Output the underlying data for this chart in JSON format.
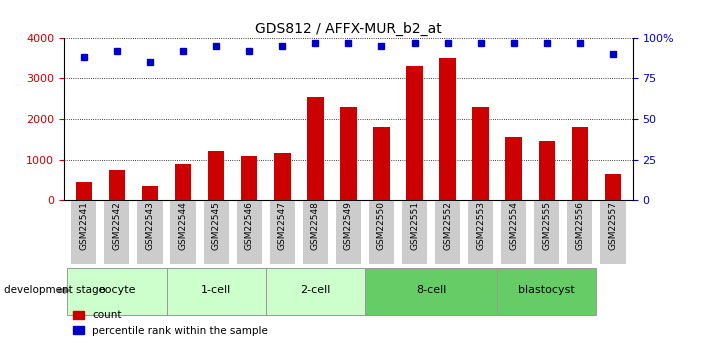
{
  "title": "GDS812 / AFFX-MUR_b2_at",
  "samples": [
    "GSM22541",
    "GSM22542",
    "GSM22543",
    "GSM22544",
    "GSM22545",
    "GSM22546",
    "GSM22547",
    "GSM22548",
    "GSM22549",
    "GSM22550",
    "GSM22551",
    "GSM22552",
    "GSM22553",
    "GSM22554",
    "GSM22555",
    "GSM22556",
    "GSM22557"
  ],
  "counts": [
    450,
    750,
    350,
    900,
    1200,
    1100,
    1150,
    2550,
    2300,
    1800,
    3300,
    3500,
    2300,
    1550,
    1450,
    1800,
    650
  ],
  "percentiles": [
    88,
    92,
    85,
    92,
    95,
    92,
    95,
    97,
    97,
    95,
    97,
    97,
    97,
    97,
    97,
    97,
    90
  ],
  "stages": [
    {
      "label": "oocyte",
      "start": 0,
      "end": 3,
      "light": true
    },
    {
      "label": "1-cell",
      "start": 3,
      "end": 6,
      "light": true
    },
    {
      "label": "2-cell",
      "start": 6,
      "end": 9,
      "light": true
    },
    {
      "label": "8-cell",
      "start": 9,
      "end": 13,
      "light": false
    },
    {
      "label": "blastocyst",
      "start": 13,
      "end": 16,
      "light": false
    }
  ],
  "ylim_left": [
    0,
    4000
  ],
  "ylim_right": [
    0,
    100
  ],
  "yticks_left": [
    0,
    1000,
    2000,
    3000,
    4000
  ],
  "yticks_right": [
    0,
    25,
    50,
    75,
    100
  ],
  "bar_color": "#cc0000",
  "dot_color": "#0000cc",
  "bar_width": 0.5,
  "left_tick_color": "#cc0000",
  "right_tick_color": "#0000cc",
  "legend_bar_label": "count",
  "legend_dot_label": "percentile rank within the sample",
  "stage_label": "development stage",
  "tick_bg_color": "#cccccc",
  "stage_color_light": "#ccffcc",
  "stage_color_dark": "#66cc66",
  "stage_border_color": "#999999",
  "figsize": [
    7.11,
    3.45
  ],
  "dpi": 100
}
